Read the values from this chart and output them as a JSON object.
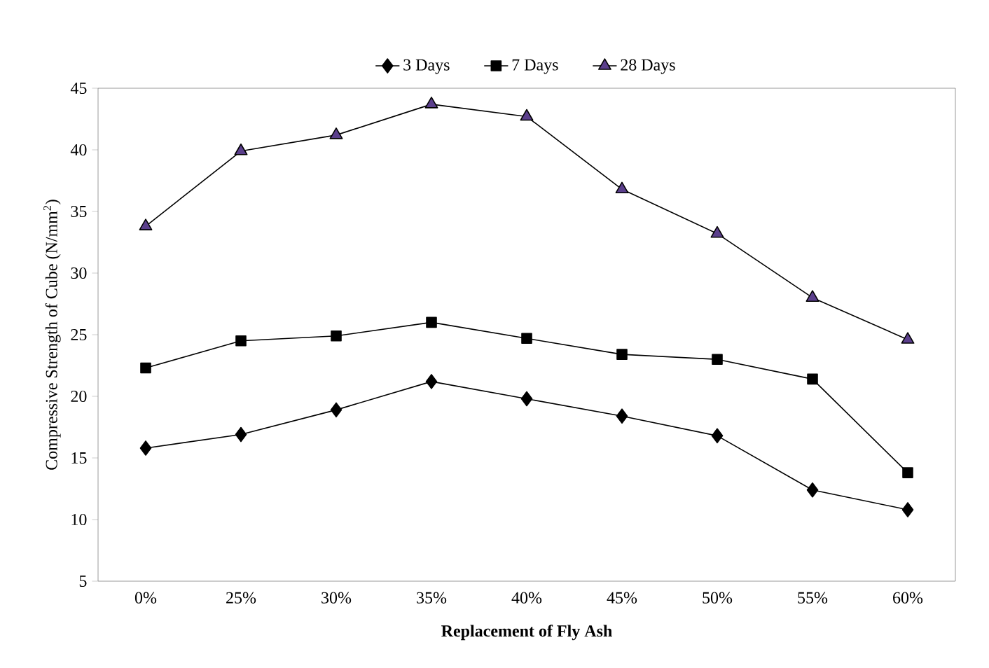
{
  "chart_data": {
    "type": "line",
    "xlabel": "Replacement of Fly Ash",
    "ylabel": "Compressive Strength of Cube (N/mm$^{2}$)",
    "categories": [
      "0%",
      "25%",
      "30%",
      "35%",
      "40%",
      "45%",
      "50%",
      "55%",
      "60%"
    ],
    "series": [
      {
        "name": "3 Days",
        "color": "#000000",
        "marker": "diamond",
        "values": [
          15.8,
          16.9,
          18.9,
          21.2,
          19.8,
          18.4,
          16.8,
          12.4,
          10.8
        ]
      },
      {
        "name": "7 Days",
        "color": "#000000",
        "marker": "square",
        "values": [
          22.3,
          24.5,
          24.9,
          26.0,
          24.7,
          23.4,
          23.0,
          21.4,
          13.8
        ]
      },
      {
        "name": "28 Days",
        "color": "#5b3f8c",
        "marker": "triangle",
        "values": [
          33.8,
          39.9,
          41.2,
          43.7,
          42.7,
          36.8,
          33.2,
          28.0,
          24.6
        ]
      }
    ],
    "ylim": [
      5,
      45
    ],
    "yticks": [
      5,
      10,
      15,
      20,
      25,
      30,
      35,
      40,
      45
    ],
    "grid": false,
    "legend": "top"
  }
}
